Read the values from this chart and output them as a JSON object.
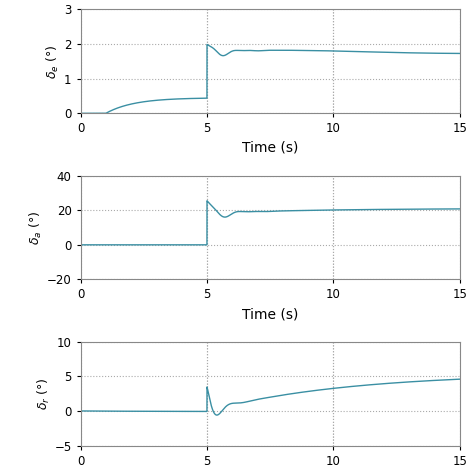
{
  "line_color": "#3A8FA3",
  "background_color": "#ffffff",
  "grid_color": "#aaaaaa",
  "xlim": [
    0,
    15
  ],
  "xticks": [
    0,
    5,
    10,
    15
  ],
  "time_label": "Time (s)",
  "plots": [
    {
      "ylabel": "$\\delta_e$ (°)",
      "ylim": [
        0,
        3
      ],
      "yticks": [
        0,
        1,
        2,
        3
      ]
    },
    {
      "ylabel": "$\\delta_a$ (°)",
      "ylim": [
        -20,
        40
      ],
      "yticks": [
        -20,
        0,
        20,
        40
      ]
    },
    {
      "ylabel": "$\\delta_r$ (°)",
      "ylim": [
        -5,
        10
      ],
      "yticks": [
        -5,
        0,
        5,
        10
      ]
    }
  ]
}
